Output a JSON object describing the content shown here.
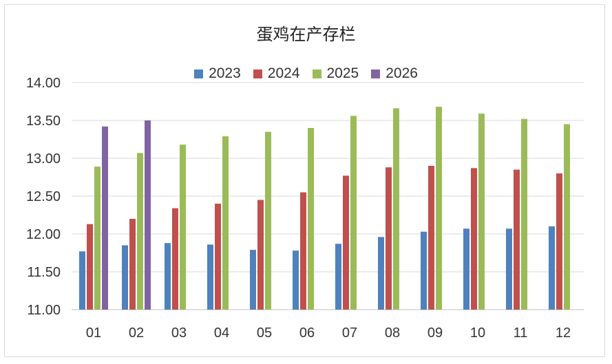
{
  "chart_data": {
    "type": "bar",
    "title": "蛋鸡在产存栏",
    "xlabel": "",
    "ylabel": "",
    "ylim": [
      11.0,
      14.0
    ],
    "yticks": [
      "11.00",
      "11.50",
      "12.00",
      "12.50",
      "13.00",
      "13.50",
      "14.00"
    ],
    "grid": true,
    "legend_position": "top-center",
    "categories": [
      "01",
      "02",
      "03",
      "04",
      "05",
      "06",
      "07",
      "08",
      "09",
      "10",
      "11",
      "12"
    ],
    "series": [
      {
        "name": "2023",
        "color": "#4F81BD",
        "values": [
          11.77,
          11.85,
          11.88,
          11.86,
          11.79,
          11.78,
          11.87,
          11.96,
          12.03,
          12.07,
          12.07,
          12.1
        ]
      },
      {
        "name": "2024",
        "color": "#C0504D",
        "values": [
          12.13,
          12.2,
          12.34,
          12.4,
          12.45,
          12.55,
          12.77,
          12.88,
          12.9,
          12.87,
          12.85,
          12.8
        ]
      },
      {
        "name": "2025",
        "color": "#9BBB59",
        "values": [
          12.89,
          13.07,
          13.18,
          13.29,
          13.35,
          13.4,
          13.56,
          13.66,
          13.68,
          13.59,
          13.52,
          13.45
        ]
      },
      {
        "name": "2026",
        "color": "#8064A2",
        "values": [
          13.42,
          13.5,
          null,
          null,
          null,
          null,
          null,
          null,
          null,
          null,
          null,
          null
        ]
      }
    ]
  }
}
